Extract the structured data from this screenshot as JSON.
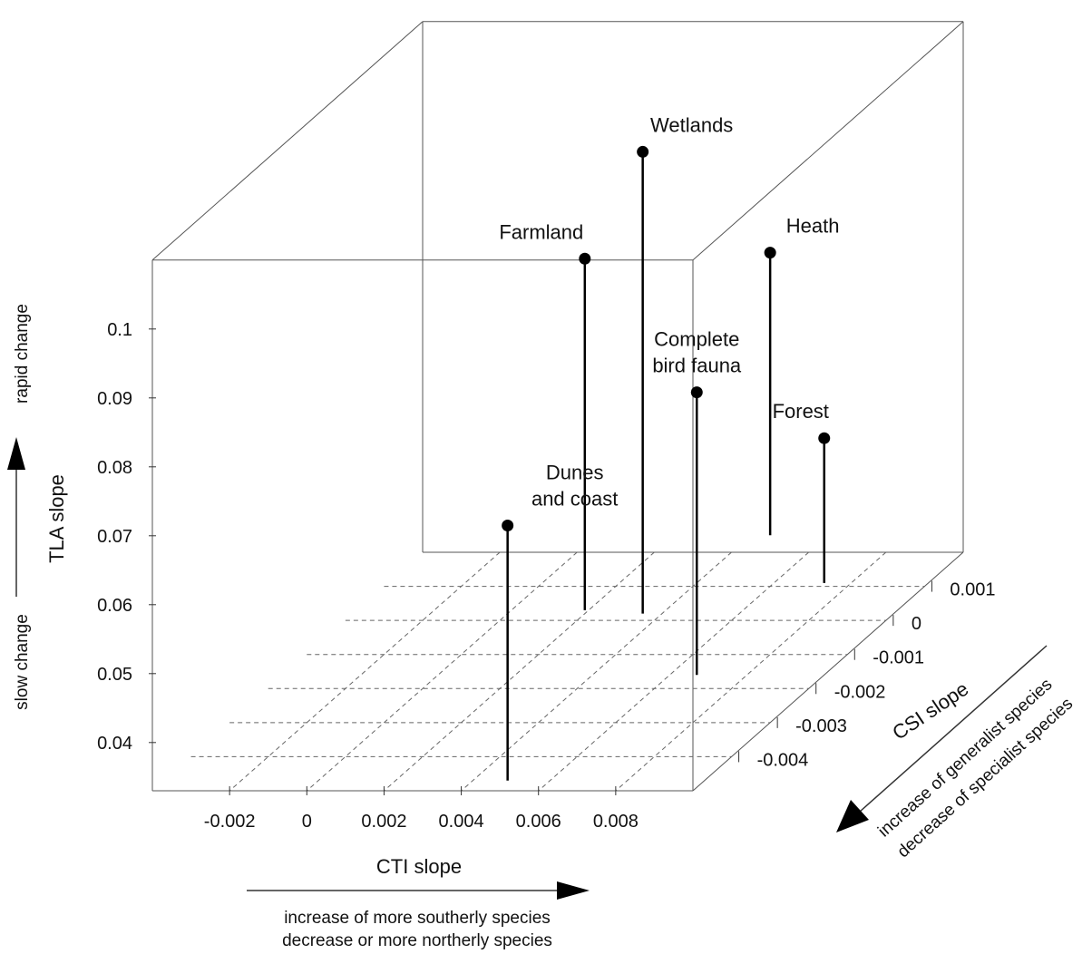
{
  "chart_data": {
    "type": "scatter",
    "title": "",
    "x_axis": {
      "label": "CTI slope",
      "range": [
        -0.004,
        0.01
      ],
      "ticks": [
        "-0.002",
        "0",
        "0.002",
        "0.004",
        "0.006",
        "0.008"
      ],
      "note_line1": "increase of more southerly species",
      "note_line2": "decrease or more northerly species"
    },
    "y_axis": {
      "label": "TLA slope",
      "range": [
        0.033,
        0.11
      ],
      "ticks": [
        "0.04",
        "0.05",
        "0.06",
        "0.07",
        "0.08",
        "0.09",
        "0.1"
      ],
      "note_high": "rapid change",
      "note_low": "slow change"
    },
    "z_axis": {
      "label": "CSI slope",
      "range": [
        0.002,
        -0.005
      ],
      "ticks": [
        "0.001",
        "0",
        "-0.001",
        "-0.002",
        "-0.003",
        "-0.004"
      ],
      "note_line1": "increase of generalist species",
      "note_line2": "decrease of specialist species"
    },
    "grid": true,
    "points": [
      {
        "name": "Wetlands",
        "cti": 0.0035,
        "csi": 0.0002,
        "tla": 0.1,
        "label_lines": [
          "Wetlands"
        ]
      },
      {
        "name": "Farmland",
        "cti": 0.0019,
        "csi": 0.0003,
        "tla": 0.084,
        "label_lines": [
          "Farmland"
        ]
      },
      {
        "name": "Complete bird fauna",
        "cti": 0.0067,
        "csi": -0.0016,
        "tla": 0.074,
        "label_lines": [
          "Complete",
          "bird fauna"
        ]
      },
      {
        "name": "Forest",
        "cti": 0.0073,
        "csi": 0.0011,
        "tla": 0.054,
        "label_lines": [
          "Forest"
        ]
      },
      {
        "name": "Dunes and coast",
        "cti": 0.0049,
        "csi": -0.0047,
        "tla": 0.07,
        "label_lines": [
          "Dunes",
          "and coast"
        ]
      },
      {
        "name": "Heath",
        "cti": 0.0045,
        "csi": 0.0025,
        "tla": 0.074,
        "label_lines": [
          "Heath"
        ]
      }
    ]
  }
}
